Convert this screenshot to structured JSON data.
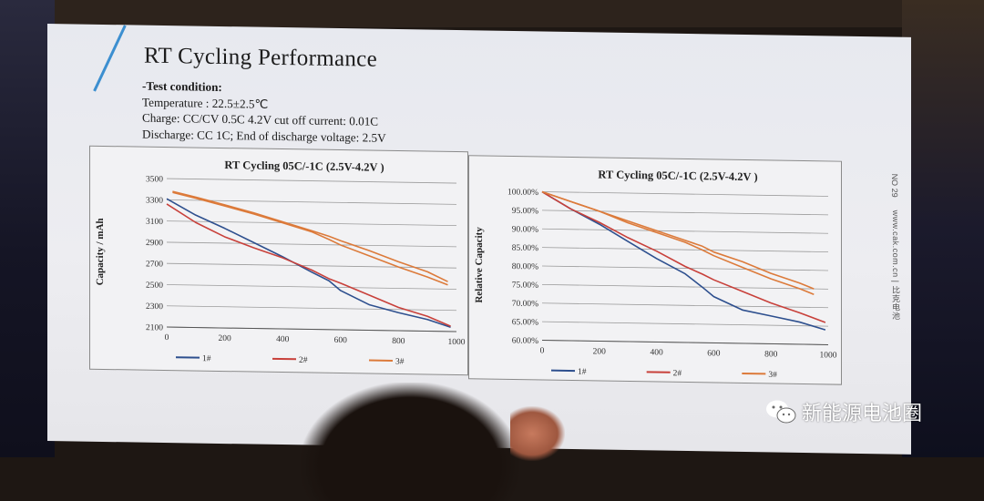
{
  "slide": {
    "title": "RT Cycling Performance",
    "test_condition_head": "-Test condition:",
    "conditions": [
      "Temperature : 22.5±2.5℃",
      "Charge: CC/CV 0.5C 4.2V cut off current: 0.01C",
      "Discharge: CC 1C; End of discharge voltage: 2.5V"
    ],
    "side_text": "www.cak.com.cn  |  比克电池",
    "page_no": "NO 29"
  },
  "watermark": {
    "text": "新能源电池圈",
    "icon": "wechat-icon"
  },
  "colors": {
    "series1": "#2d4f8e",
    "series2": "#c8403a",
    "series3": "#dc7a3a",
    "grid": "#9b9b9b"
  },
  "chart_data": [
    {
      "type": "line",
      "title": "RT Cycling 05C/-1C (2.5V-4.2V )",
      "xlabel": "",
      "ylabel": "Capacity / mAh",
      "xlim": [
        0,
        1000
      ],
      "ylim": [
        2100,
        3500
      ],
      "xticks": [
        0,
        200,
        400,
        600,
        800,
        1000
      ],
      "yticks": [
        2100,
        2300,
        2500,
        2700,
        2900,
        3100,
        3300,
        3500
      ],
      "grid": true,
      "legend": "bottom",
      "series": [
        {
          "name": "1#",
          "x": [
            0,
            100,
            200,
            300,
            400,
            500,
            560,
            600,
            700,
            800,
            900,
            980
          ],
          "y": [
            3310,
            3160,
            3040,
            2910,
            2780,
            2640,
            2560,
            2470,
            2340,
            2270,
            2210,
            2140
          ]
        },
        {
          "name": "2#",
          "x": [
            0,
            100,
            200,
            300,
            400,
            500,
            560,
            600,
            700,
            800,
            900,
            980
          ],
          "y": [
            3260,
            3090,
            2960,
            2860,
            2770,
            2660,
            2580,
            2540,
            2430,
            2320,
            2240,
            2150
          ]
        },
        {
          "name": "3#",
          "x": [
            20,
            100,
            200,
            300,
            400,
            500,
            560,
            600,
            700,
            800,
            900,
            970
          ],
          "y": [
            3370,
            3320,
            3250,
            3180,
            3100,
            3020,
            2950,
            2900,
            2800,
            2700,
            2610,
            2540
          ]
        },
        {
          "name": "",
          "x": [
            20,
            100,
            200,
            300,
            400,
            500,
            560,
            600,
            700,
            800,
            900,
            970
          ],
          "y": [
            3380,
            3330,
            3260,
            3190,
            3110,
            3030,
            2980,
            2940,
            2850,
            2750,
            2660,
            2570
          ]
        }
      ]
    },
    {
      "type": "line",
      "title": "RT Cycling 05C/-1C (2.5V-4.2V )",
      "xlabel": "",
      "ylabel": "Relative Capacity",
      "xlim": [
        0,
        1000
      ],
      "ylim": [
        60,
        100
      ],
      "xticks": [
        0,
        200,
        400,
        600,
        800,
        1000
      ],
      "yticks": [
        60,
        65,
        70,
        75,
        80,
        85,
        90,
        95,
        100
      ],
      "ytick_labels": [
        "60.00%",
        "65.00%",
        "70.00%",
        "75.00%",
        "80.00%",
        "85.00%",
        "90.00%",
        "95.00%",
        "100.00%"
      ],
      "grid": true,
      "legend": "bottom",
      "series": [
        {
          "name": "1#",
          "x": [
            0,
            100,
            200,
            300,
            400,
            500,
            560,
            600,
            700,
            800,
            900,
            990
          ],
          "y": [
            100,
            95.5,
            91.5,
            87,
            82.5,
            78.5,
            75,
            72.5,
            69,
            67.5,
            66,
            64
          ]
        },
        {
          "name": "2#",
          "x": [
            0,
            100,
            200,
            300,
            400,
            500,
            560,
            600,
            700,
            800,
            900,
            990
          ],
          "y": [
            100,
            95.5,
            92,
            88,
            84.5,
            80.5,
            78.5,
            77,
            74,
            71,
            68.5,
            66
          ]
        },
        {
          "name": "3#",
          "x": [
            0,
            100,
            200,
            300,
            400,
            500,
            560,
            600,
            700,
            800,
            900,
            950
          ],
          "y": [
            100,
            97.5,
            95,
            92.5,
            90,
            87.5,
            86,
            84.5,
            82,
            79,
            76.5,
            75
          ]
        },
        {
          "name": "",
          "x": [
            0,
            100,
            200,
            300,
            400,
            500,
            560,
            600,
            700,
            800,
            900,
            950
          ],
          "y": [
            100,
            97.5,
            95,
            92,
            89.5,
            87,
            85,
            83.5,
            80.5,
            77.5,
            75,
            73.5
          ]
        }
      ]
    }
  ]
}
